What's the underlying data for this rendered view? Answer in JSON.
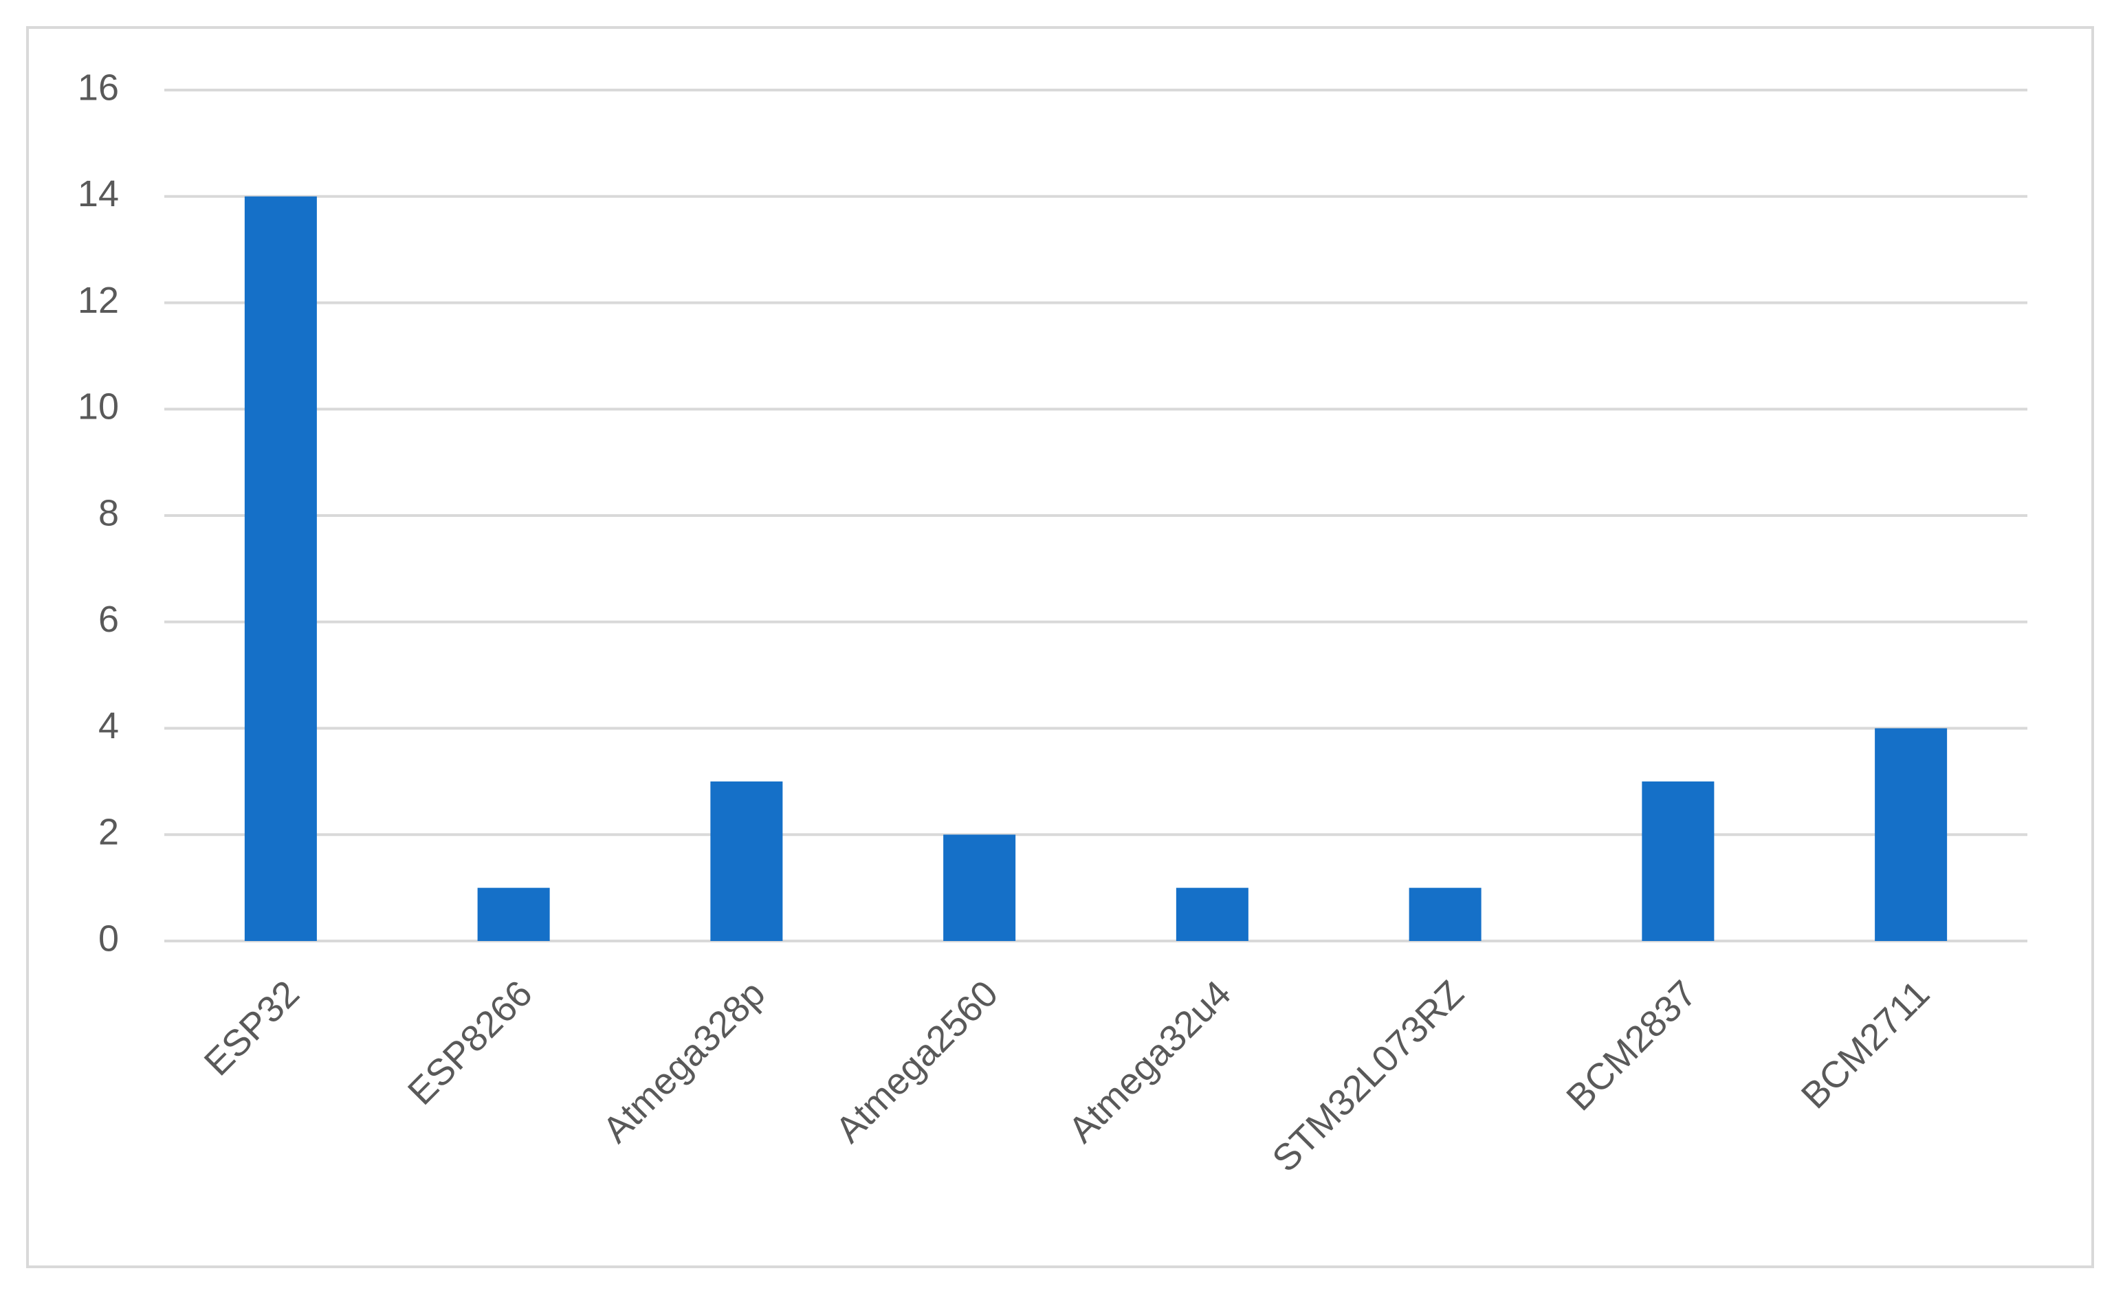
{
  "chart_data": {
    "type": "bar",
    "categories": [
      "ESP32",
      "ESP8266",
      "Atmega328p",
      "Atmega2560",
      "Atmega32u4",
      "STM32L073RZ",
      "BCM2837",
      "BCM2711"
    ],
    "values": [
      14,
      1,
      3,
      2,
      1,
      1,
      3,
      4
    ],
    "color": "#1570c8",
    "ylim": [
      0,
      16
    ],
    "yticks": [
      0,
      2,
      4,
      6,
      8,
      10,
      12,
      14,
      16
    ],
    "grid": true
  }
}
